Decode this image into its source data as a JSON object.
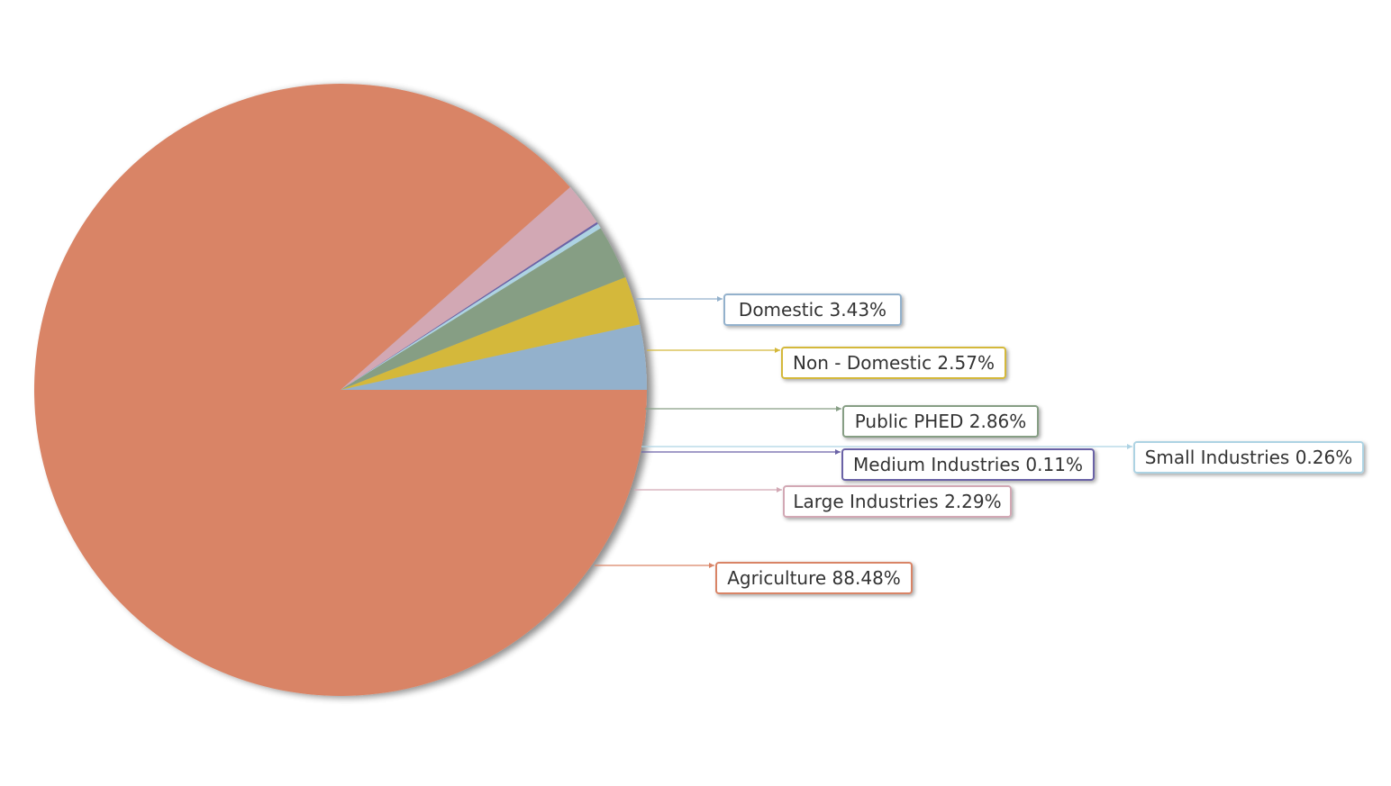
{
  "chart_data": {
    "type": "pie",
    "title": "",
    "slices": [
      {
        "label": "Domestic",
        "value": 3.43,
        "display": "Domestic 3.43%",
        "color": "#93b1cc"
      },
      {
        "label": "Non - Domestic",
        "value": 2.57,
        "display": "Non - Domestic 2.57%",
        "color": "#d4b83a"
      },
      {
        "label": "Public PHED",
        "value": 2.86,
        "display": "Public PHED 2.86%",
        "color": "#869e84"
      },
      {
        "label": "Small Industries",
        "value": 0.26,
        "display": "Small Industries 0.26%",
        "color": "#add3e3"
      },
      {
        "label": "Medium Industries",
        "value": 0.11,
        "display": "Medium Industries 0.11%",
        "color": "#6a62a6"
      },
      {
        "label": "Large Industries",
        "value": 2.29,
        "display": "Large Industries 2.29%",
        "color": "#d2a8b4"
      },
      {
        "label": "Agriculture",
        "value": 88.48,
        "display": "Agriculture 88.48%",
        "color": "#d98466"
      }
    ],
    "start_angle_deg": 0,
    "direction": "counterclockwise-from-east-first-slice-above",
    "legend": "none",
    "data_labels": "callout-boxes-right"
  }
}
